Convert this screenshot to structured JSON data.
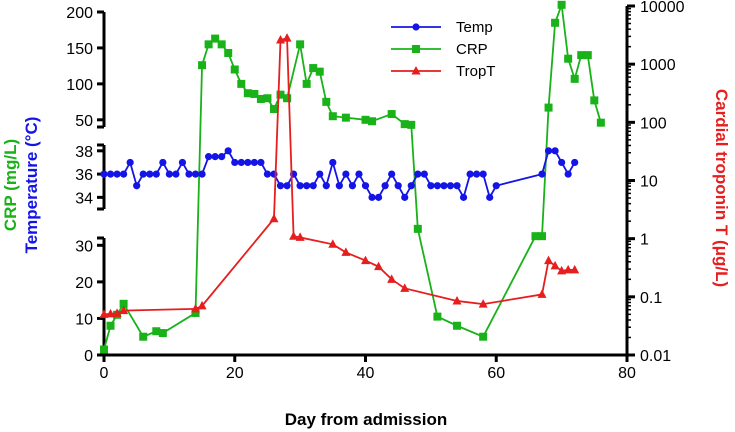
{
  "chart_data": {
    "type": "line",
    "xlabel": "Day from admission",
    "ylabel_left_top": "CRP (mg/L)",
    "ylabel_left_bottom": "Temperature (°C)",
    "ylabel_right": "Cardial troponin T (μg/L)",
    "x_axis": {
      "range": [
        0,
        80
      ],
      "ticks": [
        "0",
        "20",
        "40",
        "60",
        "80"
      ]
    },
    "left_axis_segments": [
      {
        "name": "crp-top",
        "range": [
          40,
          200
        ],
        "ticks": [
          "50",
          "100",
          "150",
          "200"
        ]
      },
      {
        "name": "temperature",
        "range": [
          33,
          38.5
        ],
        "ticks": [
          "34",
          "36",
          "38"
        ]
      },
      {
        "name": "crp-bottom",
        "range": [
          0,
          32
        ],
        "ticks": [
          "0",
          "10",
          "20",
          "30"
        ]
      }
    ],
    "right_axis": {
      "scale": "log",
      "range": [
        0.01,
        10000
      ],
      "ticks": [
        "0.01",
        "0.1",
        "1",
        "10",
        "100",
        "1000",
        "10000"
      ]
    },
    "legend": {
      "placement": "top-center",
      "entries": [
        "Temp",
        "CRP",
        "TropT"
      ]
    },
    "colors": {
      "temp": "#1414e6",
      "crp": "#19b219",
      "tropt": "#e61e1e",
      "axis": "#000000"
    },
    "series": [
      {
        "name": "Temp",
        "points": [
          [
            0,
            36
          ],
          [
            1,
            36
          ],
          [
            2,
            36
          ],
          [
            3,
            36
          ],
          [
            4,
            37
          ],
          [
            5,
            35
          ],
          [
            6,
            36
          ],
          [
            7,
            36
          ],
          [
            8,
            36
          ],
          [
            9,
            37
          ],
          [
            10,
            36
          ],
          [
            11,
            36
          ],
          [
            12,
            37
          ],
          [
            13,
            36
          ],
          [
            14,
            36
          ],
          [
            15,
            36
          ],
          [
            16,
            37.5
          ],
          [
            17,
            37.5
          ],
          [
            18,
            37.5
          ],
          [
            19,
            38
          ],
          [
            20,
            37
          ],
          [
            21,
            37
          ],
          [
            22,
            37
          ],
          [
            23,
            37
          ],
          [
            24,
            37
          ],
          [
            25,
            36
          ],
          [
            26,
            36
          ],
          [
            27,
            35
          ],
          [
            28,
            35
          ],
          [
            29,
            36
          ],
          [
            30,
            35
          ],
          [
            31,
            35
          ],
          [
            32,
            35
          ],
          [
            33,
            36
          ],
          [
            34,
            35
          ],
          [
            35,
            37
          ],
          [
            36,
            35
          ],
          [
            37,
            36
          ],
          [
            38,
            35
          ],
          [
            39,
            36
          ],
          [
            40,
            35
          ],
          [
            41,
            34
          ],
          [
            42,
            34
          ],
          [
            43,
            35
          ],
          [
            44,
            36
          ],
          [
            45,
            35
          ],
          [
            46,
            34
          ],
          [
            47,
            35
          ],
          [
            48,
            36
          ],
          [
            49,
            36
          ],
          [
            50,
            35
          ],
          [
            51,
            35
          ],
          [
            52,
            35
          ],
          [
            53,
            35
          ],
          [
            54,
            35
          ],
          [
            55,
            34
          ],
          [
            56,
            36
          ],
          [
            57,
            36
          ],
          [
            58,
            36
          ],
          [
            59,
            34
          ],
          [
            60,
            35
          ],
          [
            67,
            36
          ],
          [
            68,
            38
          ],
          [
            69,
            38
          ],
          [
            70,
            37
          ],
          [
            71,
            36
          ],
          [
            72,
            37
          ]
        ]
      },
      {
        "name": "CRP",
        "points": [
          [
            0,
            1.5
          ],
          [
            1,
            8
          ],
          [
            2,
            11
          ],
          [
            3,
            14
          ],
          [
            6,
            5
          ],
          [
            8,
            6.5
          ],
          [
            9,
            6
          ],
          [
            14,
            11.5
          ],
          [
            15,
            126
          ],
          [
            16,
            155
          ],
          [
            17,
            163
          ],
          [
            18,
            155
          ],
          [
            19,
            143
          ],
          [
            20,
            120
          ],
          [
            21,
            100
          ],
          [
            22,
            87
          ],
          [
            23,
            86
          ],
          [
            24,
            79
          ],
          [
            25,
            80
          ],
          [
            26,
            65
          ],
          [
            27,
            85
          ],
          [
            28,
            80
          ],
          [
            30,
            155
          ],
          [
            31,
            100
          ],
          [
            32,
            122
          ],
          [
            33,
            117
          ],
          [
            34,
            75
          ],
          [
            35,
            55
          ],
          [
            37,
            53
          ],
          [
            40,
            50
          ],
          [
            41,
            48
          ],
          [
            44,
            58
          ],
          [
            46,
            44
          ],
          [
            47,
            43
          ],
          [
            48,
            34.5
          ],
          [
            51,
            10.5
          ],
          [
            54,
            8
          ],
          [
            58,
            5
          ],
          [
            66,
            32.5
          ],
          [
            67,
            32.5
          ],
          [
            68,
            67
          ],
          [
            69,
            185
          ],
          [
            70,
            210
          ],
          [
            71,
            135
          ],
          [
            72,
            107
          ],
          [
            73,
            140
          ],
          [
            74,
            140
          ],
          [
            75,
            77
          ],
          [
            76,
            46
          ]
        ]
      },
      {
        "name": "TropT",
        "points": [
          [
            0,
            0.05
          ],
          [
            1,
            0.051
          ],
          [
            2,
            0.052
          ],
          [
            3,
            0.058
          ],
          [
            14,
            0.062
          ],
          [
            15,
            0.07
          ],
          [
            26,
            2.2
          ],
          [
            27,
            2600
          ],
          [
            28,
            2800
          ],
          [
            29,
            1.1
          ],
          [
            30,
            1.05
          ],
          [
            35,
            0.8
          ],
          [
            37,
            0.58
          ],
          [
            40,
            0.42
          ],
          [
            42,
            0.33
          ],
          [
            44,
            0.2
          ],
          [
            46,
            0.14
          ],
          [
            54,
            0.085
          ],
          [
            58,
            0.075
          ],
          [
            67,
            0.11
          ],
          [
            68,
            0.42
          ],
          [
            69,
            0.34
          ],
          [
            70,
            0.28
          ],
          [
            71,
            0.29
          ],
          [
            72,
            0.29
          ]
        ]
      }
    ]
  }
}
